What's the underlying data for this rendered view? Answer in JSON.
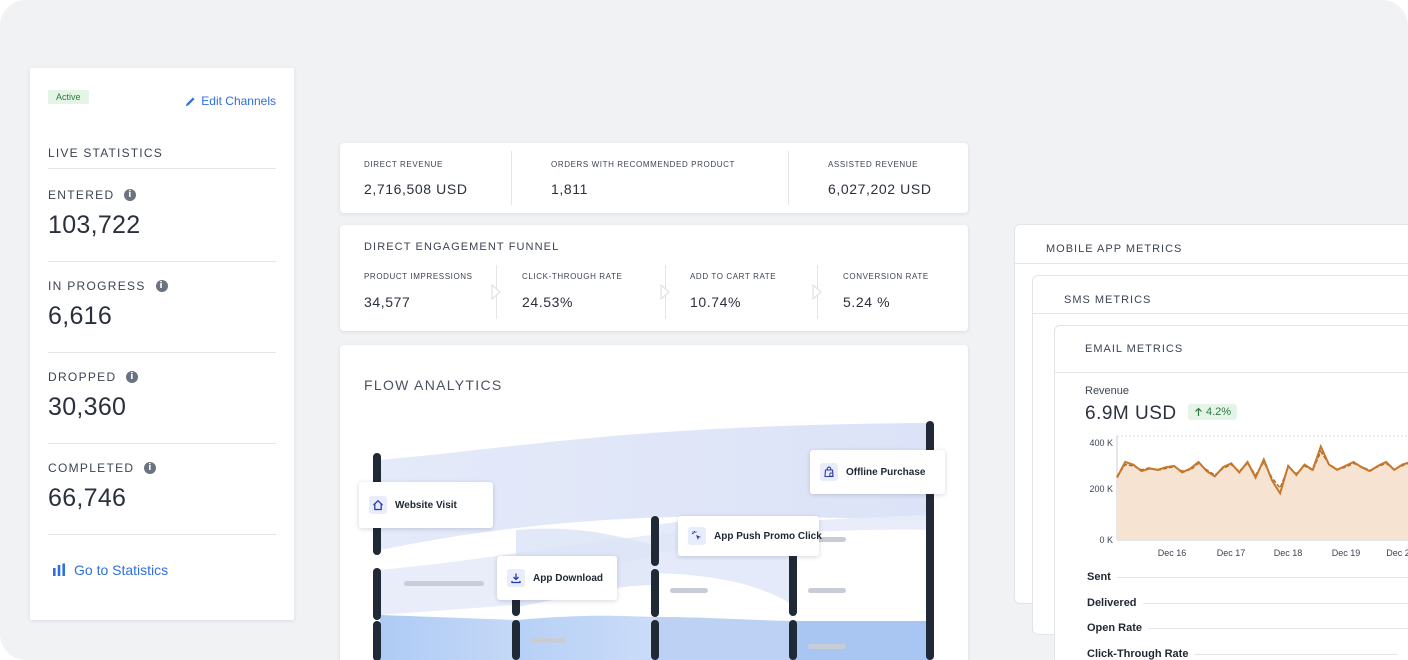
{
  "stats_card": {
    "badge": "Active",
    "edit_label": "Edit Channels",
    "heading": "LIVE STATISTICS",
    "items": [
      {
        "label": "ENTERED",
        "value": "103,722"
      },
      {
        "label": "IN PROGRESS",
        "value": "6,616"
      },
      {
        "label": "DROPPED",
        "value": "30,360"
      },
      {
        "label": "COMPLETED",
        "value": "66,746"
      }
    ],
    "goto_label": "Go to Statistics"
  },
  "kpis": [
    {
      "label": "DIRECT REVENUE",
      "value": "2,716,508 USD"
    },
    {
      "label": "ORDERS WITH RECOMMENDED PRODUCT",
      "value": "1,811"
    },
    {
      "label": "ASSISTED REVENUE",
      "value": "6,027,202 USD"
    }
  ],
  "funnel": {
    "title": "DIRECT ENGAGEMENT FUNNEL",
    "steps": [
      {
        "label": "PRODUCT IMPRESSIONS",
        "value": "34,577"
      },
      {
        "label": "CLICK-THROUGH RATE",
        "value": "24.53%"
      },
      {
        "label": "ADD TO CART RATE",
        "value": "10.74%"
      },
      {
        "label": "CONVERSION RATE",
        "value": "5.24 %"
      }
    ]
  },
  "flow": {
    "title": "FLOW ANALYTICS",
    "nodes": [
      {
        "label": "Website Visit",
        "icon": "home-icon"
      },
      {
        "label": "App Download",
        "icon": "download-icon"
      },
      {
        "label": "App Push Promo Click",
        "icon": "click-icon"
      },
      {
        "label": "Offline Purchase",
        "icon": "shopping-bag-icon"
      }
    ]
  },
  "metrics": {
    "mobile_title": "MOBILE APP METRICS",
    "sms_title": "SMS METRICS",
    "email_title": "EMAIL METRICS",
    "revenue_label": "Revenue",
    "revenue_value": "6.9M USD",
    "revenue_change": "4.2%",
    "rows": [
      "Sent",
      "Delivered",
      "Open Rate",
      "Click-Through Rate"
    ]
  },
  "colors": {
    "accent": "#2f6fe0",
    "positive": "#2d7a3e",
    "chart_line": "#c7772a",
    "chart_fill": "#f6e3d2",
    "flow_bar": "#1f2a36"
  },
  "chart_data": {
    "type": "area",
    "x_ticks": [
      "Dec 16",
      "Dec 17",
      "Dec 18",
      "Dec 19",
      "Dec 2"
    ],
    "y_ticks": [
      "400 K",
      "200 K",
      "0 K"
    ],
    "ylim": [
      0,
      400000
    ],
    "series": [
      {
        "values": [
          240000,
          300000,
          290000,
          265000,
          275000,
          270000,
          280000,
          285000,
          260000,
          275000,
          300000,
          265000,
          245000,
          280000,
          295000,
          260000,
          300000,
          240000,
          310000,
          230000,
          180000,
          285000,
          250000,
          290000,
          270000,
          360000,
          290000,
          270000,
          285000,
          300000,
          280000,
          265000,
          285000,
          300000,
          270000,
          290000,
          300000,
          285000,
          270000,
          290000
        ]
      },
      {
        "values": [
          245000,
          290000,
          285000,
          270000,
          278000,
          268000,
          275000,
          282000,
          265000,
          270000,
          295000,
          270000,
          250000,
          275000,
          290000,
          265000,
          295000,
          250000,
          300000,
          240000,
          200000,
          280000,
          255000,
          285000,
          268000,
          340000,
          292000,
          272000,
          280000,
          295000,
          282000,
          268000,
          282000,
          295000,
          272000,
          286000,
          298000,
          285000,
          272000,
          288000
        ]
      }
    ]
  }
}
